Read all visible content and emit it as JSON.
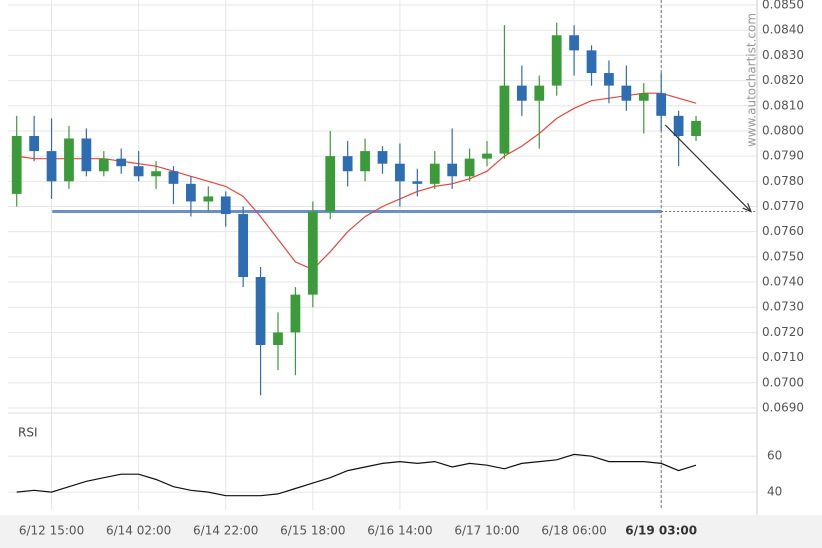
{
  "chart_data": {
    "type": "candlestick",
    "categories": [
      null,
      null,
      "6/12 15:00",
      null,
      null,
      null,
      null,
      "6/14 02:00",
      null,
      null,
      null,
      null,
      "6/14 22:00",
      null,
      null,
      null,
      null,
      "6/15 18:00",
      null,
      null,
      null,
      null,
      "6/16 14:00",
      null,
      null,
      null,
      null,
      "6/17 10:00",
      null,
      null,
      null,
      null,
      "6/18 06:00",
      null,
      null,
      null,
      null,
      "6/19 03:00",
      null,
      null,
      null,
      null,
      null
    ],
    "open": [
      0.0775,
      0.0798,
      0.0792,
      0.078,
      0.0797,
      0.0784,
      0.0789,
      0.0786,
      0.0782,
      0.0784,
      0.0779,
      0.0772,
      0.0774,
      0.0767,
      0.0742,
      0.0715,
      0.072,
      0.0735,
      0.0768,
      0.079,
      0.0784,
      0.0792,
      0.0787,
      0.078,
      0.0779,
      0.0787,
      0.0782,
      0.0789,
      0.0791,
      0.0818,
      0.0812,
      0.0818,
      0.0838,
      0.0832,
      0.0823,
      0.0818,
      0.0812,
      0.0815,
      0.0806,
      0.0798,
      null,
      null,
      null
    ],
    "high": [
      0.0806,
      0.0806,
      0.0805,
      0.0802,
      0.0801,
      0.0792,
      0.0793,
      0.0792,
      0.0788,
      0.0786,
      0.0782,
      0.0778,
      0.0776,
      0.077,
      0.0746,
      0.0728,
      0.0738,
      0.0772,
      0.08,
      0.0796,
      0.0797,
      0.0794,
      0.0795,
      0.0785,
      0.0792,
      0.0801,
      0.0793,
      0.0796,
      0.0842,
      0.0826,
      0.0822,
      0.0843,
      0.0842,
      0.0834,
      0.0828,
      0.0826,
      0.0819,
      0.0823,
      0.0808,
      0.0806,
      null,
      null,
      null
    ],
    "low": [
      0.077,
      0.0788,
      0.0773,
      0.0777,
      0.0782,
      0.0782,
      0.0783,
      0.078,
      0.0777,
      0.0771,
      0.0766,
      0.0768,
      0.0762,
      0.0738,
      0.0695,
      0.0705,
      0.0703,
      0.073,
      0.0765,
      0.0778,
      0.078,
      0.0783,
      0.077,
      0.0774,
      0.0777,
      0.0777,
      0.078,
      0.0786,
      0.0789,
      0.0806,
      0.0793,
      0.0814,
      0.0822,
      0.0818,
      0.0811,
      0.0808,
      0.0799,
      0.08,
      0.0786,
      0.0796,
      null,
      null,
      null
    ],
    "close": [
      0.0798,
      0.0792,
      0.078,
      0.0797,
      0.0784,
      0.0789,
      0.0786,
      0.0782,
      0.0784,
      0.0779,
      0.0772,
      0.0774,
      0.0767,
      0.0742,
      0.0715,
      0.072,
      0.0735,
      0.0768,
      0.079,
      0.0784,
      0.0792,
      0.0787,
      0.078,
      0.0779,
      0.0787,
      0.0782,
      0.0789,
      0.0791,
      0.0818,
      0.0812,
      0.0818,
      0.0838,
      0.0832,
      0.0823,
      0.0818,
      0.0812,
      0.0815,
      0.0806,
      0.0798,
      0.0804,
      null,
      null,
      null
    ],
    "up_color": "#3b9b3b",
    "down_color": "#2f6db3",
    "ylim": [
      0.0688,
      0.0852
    ],
    "yticks": [
      {
        "value": 0.085,
        "label": "0.0850"
      },
      {
        "value": 0.084,
        "label": "0.0840"
      },
      {
        "value": 0.083,
        "label": "0.0830"
      },
      {
        "value": 0.082,
        "label": "0.0820"
      },
      {
        "value": 0.081,
        "label": "0.0810"
      },
      {
        "value": 0.08,
        "label": "0.0800"
      },
      {
        "value": 0.079,
        "label": "0.0790"
      },
      {
        "value": 0.078,
        "label": "0.0780"
      },
      {
        "value": 0.077,
        "label": "0.0770"
      },
      {
        "value": 0.076,
        "label": "0.0760"
      },
      {
        "value": 0.075,
        "label": "0.0750"
      },
      {
        "value": 0.074,
        "label": "0.0740"
      },
      {
        "value": 0.073,
        "label": "0.0730"
      },
      {
        "value": 0.072,
        "label": "0.0720"
      },
      {
        "value": 0.071,
        "label": "0.0710"
      },
      {
        "value": 0.07,
        "label": "0.0700"
      },
      {
        "value": 0.069,
        "label": "0.0690"
      }
    ],
    "grid": true,
    "moving_average": {
      "color": "#e8453c",
      "values": [
        0.079,
        0.0789,
        0.0789,
        0.0789,
        0.0789,
        0.0789,
        0.0788,
        0.0787,
        0.0786,
        0.0784,
        0.0782,
        0.078,
        0.0778,
        0.0774,
        0.0766,
        0.0757,
        0.0748,
        0.0745,
        0.0752,
        0.076,
        0.0766,
        0.077,
        0.0773,
        0.0776,
        0.0778,
        0.0779,
        0.0781,
        0.0784,
        0.079,
        0.0794,
        0.0799,
        0.0805,
        0.0809,
        0.0812,
        0.0813,
        0.0814,
        0.0815,
        0.0815,
        0.0813,
        0.0811,
        null,
        null,
        null
      ]
    },
    "target_level": 0.0768,
    "target_color": "#6b8fcb",
    "watermark": "www.autochartist.com",
    "indicator": {
      "title": "RSI",
      "ylim": [
        30,
        83
      ],
      "yticks": [
        60,
        40
      ],
      "values": [
        40,
        41,
        40,
        43,
        46,
        48,
        50,
        50,
        47,
        43,
        41,
        40,
        38,
        38,
        38,
        39,
        42,
        45,
        48,
        52,
        54,
        56,
        57,
        56,
        57,
        54,
        56,
        55,
        53,
        56,
        57,
        58,
        61,
        60,
        57,
        57,
        57,
        56,
        52,
        55,
        null,
        null,
        null
      ]
    }
  }
}
